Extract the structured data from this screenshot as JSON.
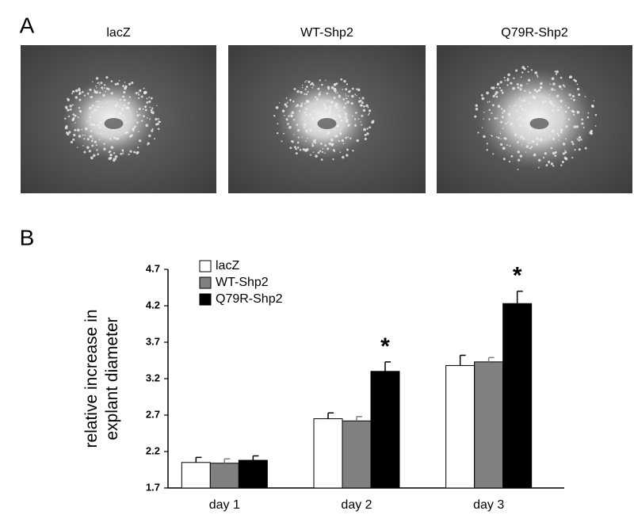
{
  "panels": {
    "a": "A",
    "b": "B"
  },
  "images": [
    {
      "label": "lacZ"
    },
    {
      "label": "WT-Shp2"
    },
    {
      "label": "Q79R-Shp2"
    }
  ],
  "chart_data": {
    "type": "bar",
    "ylabel": [
      "relative increase in",
      "explant diameter"
    ],
    "categories": [
      "day 1",
      "day 2",
      "day 3"
    ],
    "series": [
      {
        "name": "lacZ",
        "color": "#ffffff",
        "values": [
          2.05,
          2.65,
          3.38
        ],
        "errors": [
          0.07,
          0.08,
          0.14
        ]
      },
      {
        "name": "WT-Shp2",
        "color": "#808080",
        "values": [
          2.04,
          2.62,
          3.43
        ],
        "errors": [
          0.06,
          0.06,
          0.06
        ]
      },
      {
        "name": "Q79R-Shp2",
        "color": "#000000",
        "values": [
          2.08,
          3.3,
          4.23
        ],
        "errors": [
          0.06,
          0.13,
          0.17
        ]
      }
    ],
    "annotations": [
      {
        "text": "*",
        "x": "day 2"
      },
      {
        "text": "*",
        "x": "day 3"
      }
    ],
    "ylim": [
      1.7,
      4.7
    ],
    "yticks": [
      1.7,
      2.2,
      2.7,
      3.2,
      3.7,
      4.2,
      4.7
    ],
    "legend": "top-left"
  }
}
